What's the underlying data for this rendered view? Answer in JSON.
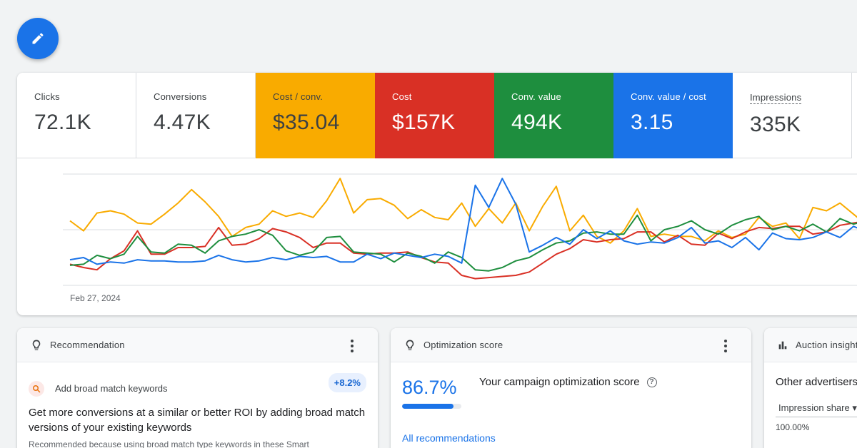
{
  "fab": {
    "icon": "pencil-icon",
    "color": "#1a73e8"
  },
  "metrics": [
    {
      "label": "Clicks",
      "value": "72.1K",
      "bg": "#ffffff"
    },
    {
      "label": "Conversions",
      "value": "4.47K",
      "bg": "#ffffff"
    },
    {
      "label": "Cost / conv.",
      "value": "$35.04",
      "bg": "#f9ab00"
    },
    {
      "label": "Cost",
      "value": "$157K",
      "bg": "#d93025"
    },
    {
      "label": "Conv. value",
      "value": "494K",
      "bg": "#1e8e3e"
    },
    {
      "label": "Conv. value / cost",
      "value": "3.15",
      "bg": "#1a73e8"
    },
    {
      "label": "Impressions",
      "value": "335K",
      "bg": "#ffffff"
    }
  ],
  "chart_data": {
    "type": "line",
    "x_start_label": "Feb 27, 2024",
    "series": [
      {
        "color": "#f9ab00",
        "values": [
          58,
          49,
          65,
          67,
          64,
          56,
          55,
          64,
          74,
          86,
          75,
          62,
          44,
          52,
          55,
          67,
          62,
          65,
          61,
          76,
          96,
          65,
          77,
          78,
          72,
          60,
          68,
          61,
          59,
          74,
          53,
          69,
          56,
          74,
          49,
          71,
          89,
          49,
          63,
          44,
          38,
          49,
          69,
          44,
          46,
          44,
          44,
          40,
          49,
          43,
          46,
          61,
          53,
          56,
          42,
          70,
          67,
          74,
          64,
          54
        ]
      },
      {
        "color": "#d93025",
        "values": [
          19,
          16,
          14,
          24,
          31,
          49,
          28,
          28,
          34,
          34,
          35,
          52,
          36,
          37,
          42,
          51,
          48,
          43,
          34,
          38,
          38,
          29,
          28,
          29,
          29,
          30,
          25,
          21,
          20,
          9,
          6,
          7,
          8,
          9,
          12,
          20,
          28,
          33,
          41,
          39,
          41,
          42,
          48,
          48,
          39,
          45,
          37,
          36,
          47,
          42,
          48,
          52,
          51,
          53,
          53,
          46,
          48,
          54,
          56,
          58
        ]
      },
      {
        "color": "#1e8e3e",
        "values": [
          18,
          19,
          27,
          24,
          28,
          44,
          30,
          29,
          37,
          36,
          29,
          40,
          44,
          46,
          50,
          45,
          31,
          27,
          30,
          43,
          44,
          30,
          29,
          28,
          21,
          29,
          26,
          20,
          30,
          25,
          14,
          13,
          16,
          22,
          25,
          32,
          38,
          40,
          47,
          48,
          46,
          46,
          63,
          40,
          50,
          53,
          58,
          50,
          46,
          54,
          59,
          62,
          50,
          53,
          49,
          55,
          48,
          60,
          55,
          58
        ]
      },
      {
        "color": "#1a73e8",
        "values": [
          23,
          25,
          19,
          21,
          20,
          23,
          22,
          22,
          21,
          21,
          22,
          27,
          23,
          21,
          22,
          25,
          23,
          26,
          25,
          26,
          21,
          21,
          28,
          24,
          29,
          27,
          25,
          28,
          26,
          20,
          90,
          70,
          96,
          73,
          30,
          36,
          43,
          37,
          50,
          42,
          49,
          40,
          37,
          39,
          38,
          43,
          52,
          38,
          40,
          34,
          43,
          32,
          47,
          42,
          41,
          43,
          48,
          43,
          53,
          48
        ]
      }
    ],
    "ylim": [
      0,
      100
    ],
    "grid": true
  },
  "cards": {
    "recommendation": {
      "title": "Recommendation",
      "item_name": "Add broad match keywords",
      "badge": "+8.2%",
      "headline": "Get more conversions at a similar or better ROI by adding broad match versions of your existing keywords",
      "sub": "Recommended because using broad match type keywords in these Smart"
    },
    "optimization": {
      "title": "Optimization score",
      "score": "86.7%",
      "score_value": 0.867,
      "score_title": "Your campaign optimization score",
      "link": "All recommendations"
    },
    "auction": {
      "title": "Auction insights",
      "other": "Other advertisers",
      "impression_share": "Impression share ▾",
      "value": "100.00%"
    }
  }
}
